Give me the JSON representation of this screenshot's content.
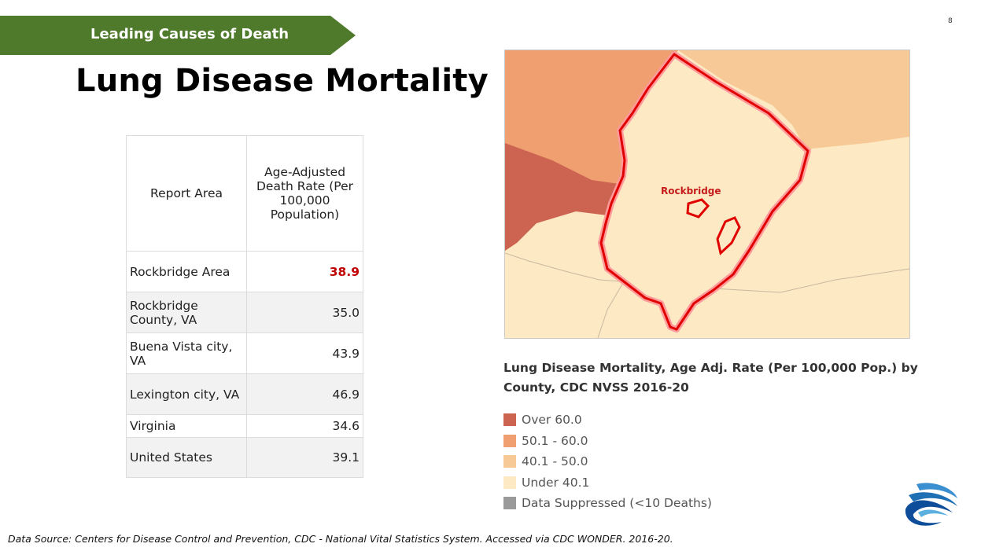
{
  "header": {
    "banner_label": "Leading Causes of Death",
    "page_number": "8",
    "title": "Lung Disease Mortality"
  },
  "table": {
    "columns": [
      "Report Area",
      "Age-Adjusted Death Rate (Per 100,000 Population)"
    ],
    "rows": [
      {
        "area": "Rockbridge Area",
        "rate": "38.9"
      },
      {
        "area": "Rockbridge County, VA",
        "rate": "35.0"
      },
      {
        "area": "Buena Vista city, VA",
        "rate": "43.9"
      },
      {
        "area": "Lexington city, VA",
        "rate": "46.9"
      },
      {
        "area": "Virginia",
        "rate": "34.6"
      },
      {
        "area": "United States",
        "rate": "39.1"
      }
    ]
  },
  "map": {
    "label": "Rockbridge",
    "caption": "Lung Disease Mortality, Age Adj. Rate (Per 100,000 Pop.) by County, CDC NVSS 2016-20"
  },
  "legend": [
    {
      "label": "Over 60.0",
      "color": "#cd6451"
    },
    {
      "label": "50.1 - 60.0",
      "color": "#f0a070"
    },
    {
      "label": "40.1 - 50.0",
      "color": "#f7c996"
    },
    {
      "label": "Under 40.1",
      "color": "#fde9c4"
    },
    {
      "label": "Data Suppressed (<10 Deaths)",
      "color": "#9a9a9a"
    }
  ],
  "colors": {
    "banner": "#4f7a2c",
    "highlight": "#c00000",
    "boundary": "#e00000"
  },
  "footer": {
    "source": "Data Source: Centers for Disease Control and Prevention, CDC - National Vital Statistics System. Accessed via CDC WONDER. 2016-20."
  }
}
